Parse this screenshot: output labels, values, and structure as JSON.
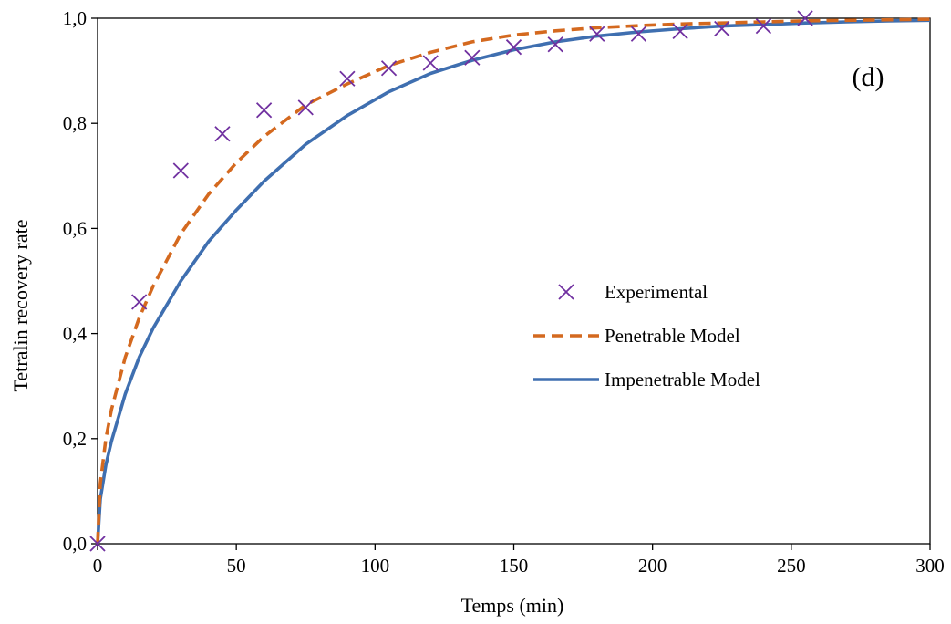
{
  "chart_data": {
    "type": "line",
    "xlabel": "Temps (min)",
    "ylabel": "Tetralin recovery rate",
    "panel_label": "(d)",
    "xlim": [
      0,
      300
    ],
    "ylim": [
      0,
      1.0
    ],
    "x_ticks": [
      0,
      50,
      100,
      150,
      200,
      250,
      300
    ],
    "y_ticks": [
      0.0,
      0.2,
      0.4,
      0.6,
      0.8,
      1.0
    ],
    "x_tick_labels": [
      "0",
      "50",
      "100",
      "150",
      "200",
      "250",
      "300"
    ],
    "y_tick_labels": [
      "0,0",
      "0,2",
      "0,4",
      "0,6",
      "0,8",
      "1,0"
    ],
    "grid": false,
    "legend_position": "center-right",
    "series": [
      {
        "name": "Experimental",
        "style": "markers",
        "marker": "x",
        "color": "#7030a0",
        "x": [
          0,
          15,
          30,
          45,
          60,
          75,
          90,
          105,
          120,
          135,
          150,
          165,
          180,
          195,
          210,
          225,
          240,
          255
        ],
        "y": [
          0.0,
          0.46,
          0.71,
          0.78,
          0.825,
          0.83,
          0.885,
          0.905,
          0.915,
          0.925,
          0.945,
          0.95,
          0.97,
          0.97,
          0.975,
          0.98,
          0.985,
          1.0
        ]
      },
      {
        "name": "Penetrable Model",
        "style": "dashed",
        "color": "#d4691f",
        "x": [
          0,
          1,
          3,
          5,
          10,
          15,
          20,
          30,
          40,
          50,
          60,
          75,
          90,
          105,
          120,
          135,
          150,
          165,
          180,
          195,
          210,
          225,
          240,
          255,
          270,
          285,
          300
        ],
        "y": [
          0.0,
          0.115,
          0.2,
          0.255,
          0.355,
          0.43,
          0.49,
          0.59,
          0.665,
          0.725,
          0.775,
          0.835,
          0.875,
          0.91,
          0.935,
          0.955,
          0.968,
          0.976,
          0.982,
          0.986,
          0.989,
          0.991,
          0.993,
          0.995,
          0.996,
          0.997,
          0.998
        ]
      },
      {
        "name": "Impenetrable Model",
        "style": "solid",
        "color": "#3f6fb0",
        "x": [
          0,
          1,
          3,
          5,
          10,
          15,
          20,
          30,
          40,
          50,
          60,
          75,
          90,
          105,
          120,
          135,
          150,
          165,
          180,
          195,
          210,
          225,
          240,
          255,
          270,
          285,
          300
        ],
        "y": [
          0.0,
          0.085,
          0.15,
          0.195,
          0.285,
          0.355,
          0.41,
          0.5,
          0.575,
          0.635,
          0.69,
          0.76,
          0.815,
          0.86,
          0.895,
          0.92,
          0.94,
          0.955,
          0.966,
          0.974,
          0.98,
          0.985,
          0.988,
          0.991,
          0.993,
          0.995,
          0.996
        ]
      }
    ]
  }
}
